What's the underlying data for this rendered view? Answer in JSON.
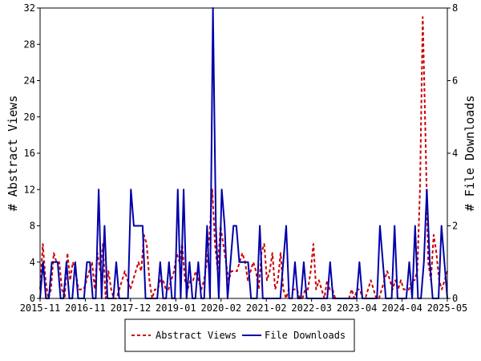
{
  "chart_data": {
    "type": "line",
    "title": "",
    "ylabel_left": "# Abstract Views",
    "ylabel_right": "# File Downloads",
    "ylim_left": [
      0,
      32
    ],
    "ylim_right": [
      0,
      8
    ],
    "yticks_left": [
      0,
      4,
      8,
      12,
      16,
      20,
      24,
      28,
      32
    ],
    "yticks_right": [
      0,
      2,
      4,
      6,
      8
    ],
    "xtick_labels": [
      "2015-11",
      "2016-11",
      "2017-12",
      "2019-01",
      "2020-02",
      "2021-02",
      "2022-03",
      "2023-04",
      "2024-04",
      "2025-05"
    ],
    "legend_position": "bottom-center",
    "grid": false,
    "colors": {
      "abstract_views": "#cc0000",
      "file_downloads": "#0000aa"
    },
    "series": [
      {
        "name": "Abstract Views",
        "axis": "left",
        "style": "dashed",
        "values": [
          1,
          6,
          2,
          0,
          1,
          5,
          4,
          4,
          1,
          0,
          5,
          2,
          4,
          3,
          1,
          1,
          1,
          2,
          3,
          4,
          1,
          5,
          3,
          6,
          0,
          3,
          1,
          0,
          0,
          1,
          2,
          3,
          2,
          1,
          2,
          3,
          4,
          3,
          7,
          6,
          2,
          0,
          1,
          1,
          2,
          2,
          1,
          1,
          2,
          3,
          5,
          4,
          6,
          2,
          1,
          2,
          2,
          3,
          2,
          1,
          2,
          4,
          7,
          12,
          6,
          3,
          8,
          6,
          4,
          2,
          3,
          3,
          3,
          4,
          5,
          4,
          2,
          3,
          4,
          3,
          1,
          5,
          6,
          2,
          3,
          5,
          1,
          2,
          5,
          1,
          0,
          1,
          1,
          1,
          1,
          0,
          0,
          1,
          1,
          3,
          6,
          1,
          2,
          1,
          0,
          2,
          1,
          1,
          0,
          0,
          0,
          0,
          0,
          0,
          1,
          0,
          1,
          1,
          0,
          0,
          1,
          2,
          1,
          0,
          0,
          1,
          2,
          3,
          2,
          1,
          2,
          1,
          2,
          1,
          1,
          1,
          2,
          2,
          3,
          12,
          31,
          18,
          4,
          2,
          7,
          5,
          2,
          1,
          2,
          3
        ]
      },
      {
        "name": "File Downloads",
        "axis": "right",
        "style": "solid",
        "values": [
          0,
          1,
          0,
          0,
          1,
          1,
          1,
          0,
          0,
          1,
          0,
          0,
          1,
          0,
          0,
          0,
          1,
          1,
          0,
          0,
          3,
          0,
          2,
          0,
          0,
          0,
          1,
          0,
          0,
          0,
          0,
          3,
          2,
          2,
          2,
          2,
          0,
          0,
          0,
          0,
          0,
          1,
          0,
          0,
          1,
          0,
          0,
          3,
          0,
          3,
          0,
          1,
          0,
          0,
          1,
          0,
          0,
          2,
          0,
          8,
          2,
          0,
          3,
          2,
          0,
          1,
          2,
          2,
          1,
          1,
          1,
          1,
          0,
          0,
          0,
          2,
          0,
          0,
          0,
          0,
          0,
          0,
          0,
          1,
          2,
          0,
          0,
          1,
          0,
          0,
          1,
          0,
          0,
          0,
          0,
          0,
          0,
          0,
          0,
          1,
          0,
          0,
          0,
          0,
          0,
          0,
          0,
          0,
          0,
          1,
          0,
          0,
          0,
          0,
          0,
          0,
          2,
          1,
          0,
          0,
          0,
          2,
          0,
          0,
          0,
          0,
          1,
          0,
          2,
          0,
          0,
          1,
          3,
          1,
          0,
          0,
          0,
          2,
          1,
          0
        ]
      }
    ]
  }
}
